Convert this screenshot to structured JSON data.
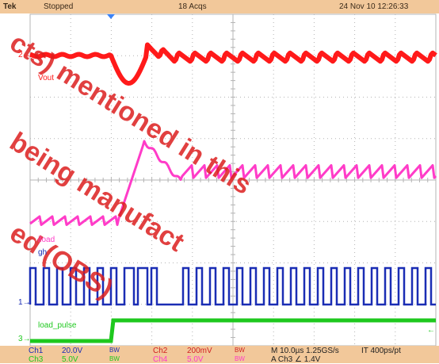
{
  "topbar": {
    "brand": "Tek",
    "state": "Stopped",
    "acqs": "18 Acqs",
    "datetime": "24 Nov 10 12:26:33"
  },
  "traces": {
    "vout_label": "Vout",
    "iload_label": "iload",
    "gh_label": "gh",
    "load_pulse_label": "load_pulse",
    "ref_marker_2": "2",
    "ref_marker_1": "1",
    "ref_marker_3": "3"
  },
  "bottombar": {
    "ch1_name": "Ch1",
    "ch1_scale": "20.0V",
    "ch1_bw": "BW",
    "ch2_name": "Ch2",
    "ch2_scale": "200mV",
    "ch2_bw": "BW",
    "timebase": "M 10.0µs 1.25GS/s",
    "interp": "IT 400ps/pt",
    "ch3_name": "Ch3",
    "ch3_scale": "5.0V",
    "ch3_bw": "BW",
    "ch4_name": "Ch4",
    "ch4_scale": "5.0V",
    "ch4_bw": "BW",
    "trigger": "A Ch3 ∠ 1.4V"
  },
  "watermark": {
    "line1": "cts) mentioned in this",
    "line2": "being manufact",
    "line3": "ed (OBS)"
  },
  "colors": {
    "vout": "#ff1a1a",
    "iload": "#ff3cc8",
    "gh": "#1a2db4",
    "load_pulse": "#1ec81e",
    "grid": "#b4b4b4",
    "bars": "#f2c89a"
  }
}
